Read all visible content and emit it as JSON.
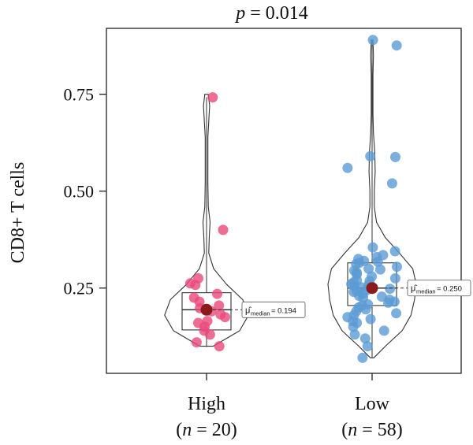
{
  "chart_data": {
    "type": "violin-box-scatter",
    "title": "= 0.014",
    "title_italic": "p",
    "ylabel": "CD8+ T cells",
    "ylim": [
      0.03,
      0.92
    ],
    "yticks": [
      0.25,
      0.5,
      0.75
    ],
    "ytick_labels": [
      "0.25",
      "0.50",
      "0.75"
    ],
    "groups": [
      {
        "name": "High",
        "n_label_open": "(",
        "n_label_italic": "n",
        "n_label_rest": " = 20)",
        "color": "#e8497a",
        "median": 0.194,
        "median_label": "= 0.194",
        "q1": 0.142,
        "q3": 0.238,
        "whisker_low": 0.098,
        "whisker_high": 0.742,
        "points": [
          0.742,
          0.4,
          0.275,
          0.262,
          0.258,
          0.235,
          0.225,
          0.215,
          0.205,
          0.198,
          0.19,
          0.182,
          0.175,
          0.165,
          0.16,
          0.15,
          0.14,
          0.13,
          0.11,
          0.1
        ],
        "violin": [
          [
            0.1,
            0.15
          ],
          [
            0.14,
            0.75
          ],
          [
            0.18,
            0.95
          ],
          [
            0.22,
            0.82
          ],
          [
            0.26,
            0.45
          ],
          [
            0.3,
            0.16
          ],
          [
            0.34,
            0.05
          ],
          [
            0.38,
            0.06
          ],
          [
            0.42,
            0.08
          ],
          [
            0.46,
            0.04
          ],
          [
            0.52,
            0.03
          ],
          [
            0.58,
            0.03
          ],
          [
            0.64,
            0.03
          ],
          [
            0.68,
            0.05
          ],
          [
            0.72,
            0.07
          ],
          [
            0.75,
            0.04
          ]
        ]
      },
      {
        "name": "Low",
        "n_label_open": "(",
        "n_label_italic": "n",
        "n_label_rest": " = 58)",
        "color": "#5b9bd5",
        "median": 0.25,
        "median_label": "= 0.250",
        "q1": 0.205,
        "q3": 0.315,
        "whisker_low": 0.07,
        "whisker_high": 0.89,
        "points": [
          0.89,
          0.876,
          0.59,
          0.588,
          0.56,
          0.52,
          0.355,
          0.345,
          0.335,
          0.33,
          0.325,
          0.32,
          0.318,
          0.315,
          0.312,
          0.305,
          0.3,
          0.298,
          0.295,
          0.29,
          0.285,
          0.28,
          0.275,
          0.27,
          0.268,
          0.265,
          0.26,
          0.258,
          0.255,
          0.252,
          0.248,
          0.245,
          0.242,
          0.24,
          0.235,
          0.23,
          0.228,
          0.225,
          0.22,
          0.215,
          0.212,
          0.208,
          0.205,
          0.2,
          0.195,
          0.19,
          0.185,
          0.18,
          0.175,
          0.17,
          0.165,
          0.16,
          0.15,
          0.14,
          0.13,
          0.12,
          0.1,
          0.07
        ],
        "violin": [
          [
            0.07,
            0.04
          ],
          [
            0.1,
            0.3
          ],
          [
            0.14,
            0.68
          ],
          [
            0.18,
            0.88
          ],
          [
            0.22,
            0.96
          ],
          [
            0.26,
            1.0
          ],
          [
            0.3,
            0.92
          ],
          [
            0.34,
            0.62
          ],
          [
            0.38,
            0.3
          ],
          [
            0.42,
            0.1
          ],
          [
            0.46,
            0.05
          ],
          [
            0.5,
            0.05
          ],
          [
            0.55,
            0.07
          ],
          [
            0.6,
            0.06
          ],
          [
            0.65,
            0.03
          ],
          [
            0.7,
            0.02
          ],
          [
            0.75,
            0.02
          ],
          [
            0.8,
            0.02
          ],
          [
            0.85,
            0.03
          ],
          [
            0.89,
            0.02
          ]
        ]
      }
    ],
    "grid": false,
    "legend": "none"
  }
}
